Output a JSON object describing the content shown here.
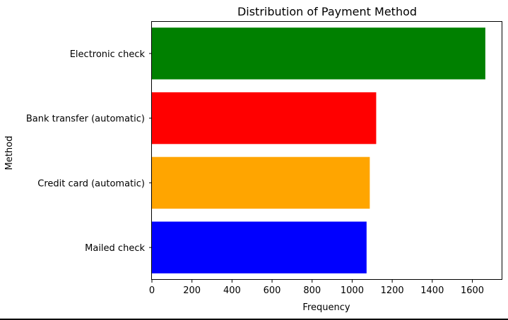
{
  "chart_data": {
    "type": "bar",
    "orientation": "horizontal",
    "title": "Distribution of Payment Method",
    "xlabel": "Frequency",
    "ylabel": "Method",
    "categories": [
      "Electronic check",
      "Bank transfer (automatic)",
      "Credit card (automatic)",
      "Mailed check"
    ],
    "values": [
      1665,
      1120,
      1088,
      1072
    ],
    "colors": [
      "#008000",
      "#ff0000",
      "#ffa500",
      "#0000ff"
    ],
    "xlim": [
      0,
      1750
    ],
    "xticks": [
      0,
      200,
      400,
      600,
      800,
      1000,
      1200,
      1400,
      1600
    ],
    "grid": false
  }
}
